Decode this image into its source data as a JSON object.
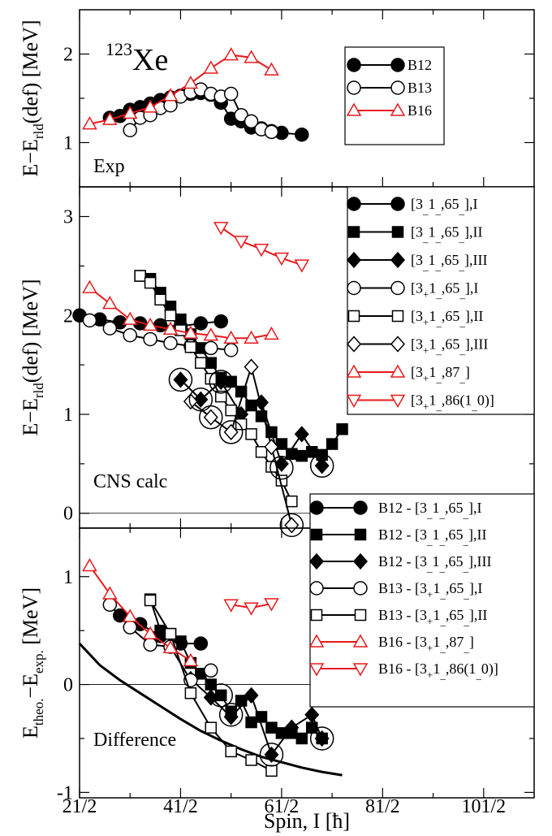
{
  "figure": {
    "xlabel_parts": {
      "pre": "Spin, I [",
      "hbar": "ħ",
      "post": "]"
    },
    "xticks": [
      "21/2",
      "41/2",
      "61/2",
      "81/2",
      "101/2"
    ],
    "xtick_values": [
      10.5,
      20.5,
      30.5,
      40.5,
      50.5
    ],
    "xlim": [
      10.5,
      55.5
    ]
  },
  "colors": {
    "black": "#000000",
    "red": "#e8191b"
  },
  "chart_data": [
    {
      "type": "line",
      "panel": "top",
      "isotope": {
        "mass": "123",
        "symbol": "Xe"
      },
      "annotation": "Exp",
      "ylabel": {
        "a": "E",
        "b": "E",
        "sub": "rld",
        "c": "(def) [MeV]"
      },
      "ylim": [
        0.5,
        2.5
      ],
      "yticks": [
        1,
        2
      ],
      "legend_position": "top-right",
      "series": [
        {
          "name": "B12",
          "marker": "filled-circle",
          "color": "#000000",
          "x": [
            13.5,
            14.5,
            15.5,
            16.5,
            17.5,
            18.5,
            19.5,
            20.5,
            21.5,
            22.5,
            23.5,
            24.5,
            25.5,
            26.5,
            27.5,
            28.5,
            29.5,
            30.5,
            32.5
          ],
          "y": [
            1.28,
            1.3,
            1.37,
            1.4,
            1.44,
            1.48,
            1.51,
            1.53,
            1.55,
            1.56,
            1.54,
            1.45,
            1.27,
            1.24,
            1.17,
            1.16,
            1.13,
            1.11,
            1.09
          ]
        },
        {
          "name": "B13",
          "marker": "open-circle",
          "color": "#000000",
          "x": [
            15.5,
            16.5,
            17.5,
            18.5,
            19.5,
            20.5,
            21.5,
            22.5,
            23.5,
            24.5,
            25.5,
            26.5,
            27.5,
            28.5,
            29.5
          ],
          "y": [
            1.14,
            1.28,
            1.31,
            1.39,
            1.42,
            1.52,
            1.57,
            1.6,
            1.55,
            1.52,
            1.55,
            1.31,
            1.24,
            1.15,
            1.12
          ]
        },
        {
          "name": "B16",
          "marker": "open-triangle-up",
          "color": "#e8191b",
          "x": [
            11.5,
            13.5,
            15.5,
            17.5,
            19.5,
            21.5,
            23.5,
            25.5,
            27.5,
            29.5
          ],
          "y": [
            1.21,
            1.26,
            1.33,
            1.4,
            1.53,
            1.67,
            1.84,
            1.99,
            1.96,
            1.82
          ]
        }
      ]
    },
    {
      "type": "line",
      "panel": "middle",
      "annotation": "CNS calc",
      "ylabel": {
        "a": "E",
        "b": "E",
        "sub": "rld",
        "c": "(def) [MeV]"
      },
      "ylim": [
        -0.15,
        3.3
      ],
      "yticks": [
        0,
        1,
        2,
        3
      ],
      "legend_position": "top-right",
      "series": [
        {
          "name": "[3_1_,65_],I",
          "legend": {
            "a": "[3",
            "s1": "_",
            "b": "1",
            "s2": "_",
            "c": ",65",
            "s3": "_",
            "d": "],I"
          },
          "marker": "filled-circle",
          "color": "#000000",
          "x": [
            10.5,
            12.5,
            14.5,
            16.5,
            18.5,
            20.5,
            22.5,
            24.5
          ],
          "y": [
            2.0,
            1.96,
            1.93,
            1.92,
            1.9,
            1.89,
            1.92,
            1.94
          ]
        },
        {
          "name": "[3_1_,65_],II",
          "legend": {
            "a": "[3",
            "s1": "_",
            "b": "1",
            "s2": "_",
            "c": ",65",
            "s3": "_",
            "d": "],II"
          },
          "marker": "filled-square",
          "color": "#000000",
          "x": [
            16.5,
            17.5,
            18.5,
            19.5,
            20.5,
            21.5,
            22.5,
            23.5,
            24.5,
            25.5,
            26.5,
            27.5,
            28.5,
            29.5,
            30.5,
            31.5,
            32.5,
            33.5,
            34.5,
            35.5,
            36.5
          ],
          "y": [
            2.4,
            2.37,
            2.23,
            2.09,
            1.96,
            1.81,
            1.67,
            1.52,
            1.37,
            1.33,
            1.23,
            1.09,
            0.98,
            0.82,
            0.7,
            0.6,
            0.58,
            0.62,
            0.59,
            0.7,
            0.85
          ]
        },
        {
          "name": "[3_1_,65_],III",
          "legend": {
            "a": "[3",
            "s1": "_",
            "b": "1",
            "s2": "_",
            "c": ",65",
            "s3": "_",
            "d": "],III"
          },
          "marker": "filled-diamond",
          "color": "#000000",
          "x": [
            20.5,
            22.5,
            24.5,
            26.5,
            28.5,
            30.5,
            32.5,
            34.5
          ],
          "y": [
            1.35,
            1.15,
            1.33,
            1.0,
            1.12,
            0.5,
            0.8,
            0.48
          ]
        },
        {
          "name": "[3+1_,65_],I",
          "legend": {
            "a": "[3",
            "s1": "+",
            "b": "1",
            "s2": "_",
            "c": ",65",
            "s3": "_",
            "d": "],I"
          },
          "marker": "open-circle",
          "color": "#000000",
          "x": [
            11.5,
            13.5,
            15.5,
            17.5,
            19.5,
            21.5,
            23.5,
            25.5
          ],
          "y": [
            1.95,
            1.87,
            1.8,
            1.76,
            1.72,
            1.69,
            1.67,
            1.65
          ]
        },
        {
          "name": "[3+1_,65_],II",
          "legend": {
            "a": "[3",
            "s1": "+",
            "b": "1",
            "s2": "_",
            "c": ",65",
            "s3": "_",
            "d": "],II"
          },
          "marker": "open-square",
          "color": "#000000",
          "x": [
            16.5,
            17.5,
            18.5,
            19.5,
            20.5,
            21.5,
            22.5,
            23.5,
            24.5,
            25.5,
            26.5,
            27.5,
            28.5,
            29.5,
            30.5,
            31.5
          ],
          "y": [
            2.4,
            2.33,
            2.16,
            2.0,
            1.85,
            1.68,
            1.52,
            1.36,
            1.18,
            1.04,
            0.9,
            0.8,
            0.62,
            0.47,
            0.33,
            0.12
          ]
        },
        {
          "name": "[3+1_,65_],III",
          "legend": {
            "a": "[3",
            "s1": "+",
            "b": "1",
            "s2": "_",
            "c": ",65",
            "s3": "_",
            "d": "],III"
          },
          "marker": "open-diamond",
          "color": "#000000",
          "x": [
            21.5,
            23.5,
            25.5,
            27.5,
            29.5,
            31.5
          ],
          "y": [
            1.13,
            0.97,
            0.82,
            1.48,
            0.67,
            -0.12
          ]
        },
        {
          "name": "[3+1_,87_]",
          "legend": {
            "a": "[3",
            "s1": "+",
            "b": "1",
            "s2": "_",
            "c": ",87",
            "s3": "_",
            "d": "]"
          },
          "marker": "open-triangle-up",
          "color": "#e8191b",
          "x": [
            11.5,
            13.5,
            15.5,
            17.5,
            19.5,
            21.5,
            23.5,
            25.5,
            27.5,
            29.5
          ],
          "y": [
            2.28,
            2.12,
            1.96,
            1.9,
            1.86,
            1.82,
            1.8,
            1.77,
            1.77,
            1.81
          ]
        },
        {
          "name": "[3+1_,86(1_0)]",
          "legend": {
            "a": "[3",
            "s1": "+",
            "b": "1",
            "s2": "_",
            "c": ",86(1",
            "s3": "_",
            "d": "0)]"
          },
          "marker": "open-triangle-down",
          "color": "#e8191b",
          "x": [
            24.5,
            26.5,
            28.5,
            30.5,
            32.5
          ],
          "y": [
            2.89,
            2.75,
            2.67,
            2.58,
            2.51
          ]
        }
      ],
      "circled_points": [
        {
          "x": 20.5,
          "y": 1.35
        },
        {
          "x": 22.5,
          "y": 1.15
        },
        {
          "x": 23.5,
          "y": 0.97
        },
        {
          "x": 24.5,
          "y": 1.33
        },
        {
          "x": 25.5,
          "y": 0.82
        },
        {
          "x": 30.5,
          "y": 0.46
        },
        {
          "x": 31.5,
          "y": -0.12
        },
        {
          "x": 34.5,
          "y": 0.48
        }
      ]
    },
    {
      "type": "line",
      "panel": "bottom",
      "annotation": "Difference",
      "ylabel": {
        "a": "E",
        "sub1": "theo.",
        "b": "−E",
        "sub2": "exp.",
        "c": " [MeV]"
      },
      "ylim": [
        -1.05,
        1.45
      ],
      "yticks": [
        -1,
        0,
        1
      ],
      "legend_position": "right",
      "series": [
        {
          "name": "B12 - [3_1_,65_],I",
          "legend": {
            "pre": "B12 - ",
            "a": "[3",
            "s1": "_",
            "b": "1",
            "s2": "_",
            "c": ",65",
            "s3": "_",
            "d": "],I"
          },
          "marker": "filled-circle",
          "color": "#000000",
          "x": [
            14.5,
            16.5,
            18.5,
            20.5,
            22.5
          ],
          "y": [
            0.64,
            0.56,
            0.45,
            0.38,
            0.38
          ]
        },
        {
          "name": "B12 - [3_1_,65_],II",
          "legend": {
            "pre": "B12 - ",
            "a": "[3",
            "s1": "_",
            "b": "1",
            "s2": "_",
            "c": ",65",
            "s3": "_",
            "d": "],II"
          },
          "marker": "filled-square",
          "color": "#000000",
          "x": [
            17.5,
            18.5,
            19.5,
            20.5,
            21.5,
            22.5,
            23.5,
            24.5,
            25.5,
            26.5,
            27.5,
            28.5,
            29.5,
            30.5,
            31.5,
            32.5,
            33.5,
            34.5
          ],
          "y": [
            0.79,
            0.5,
            0.47,
            0.4,
            0.2,
            0.1,
            0.0,
            -0.1,
            -0.25,
            -0.15,
            -0.35,
            -0.3,
            -0.4,
            -0.45,
            -0.45,
            -0.5,
            -0.4,
            -0.5
          ]
        },
        {
          "name": "B12 - [3_1_,65_],III",
          "legend": {
            "pre": "B12 - ",
            "a": "[3",
            "s1": "_",
            "b": "1",
            "s2": "_",
            "c": ",65",
            "s3": "_",
            "d": "],III"
          },
          "marker": "filled-diamond",
          "color": "#000000",
          "x": [
            21.5,
            23.5,
            25.5,
            27.5,
            29.5,
            31.5,
            33.5,
            34.5
          ],
          "y": [
            0.05,
            -0.12,
            -0.3,
            -0.1,
            -0.65,
            -0.4,
            -0.28,
            -0.5
          ]
        },
        {
          "name": "B13 - [3+1_,65_],I",
          "legend": {
            "pre": "B13 - ",
            "a": "[3",
            "s1": "+",
            "b": "1",
            "s2": "_",
            "c": ",65",
            "s3": "_",
            "d": "],I"
          },
          "marker": "open-circle",
          "color": "#000000",
          "x": [
            13.5,
            15.5,
            17.5,
            19.5,
            21.5,
            23.5
          ],
          "y": [
            0.74,
            0.53,
            0.37,
            0.35,
            0.04,
            0.13
          ]
        },
        {
          "name": "B13 - [3+1_,65_],II",
          "legend": {
            "pre": "B13 - ",
            "a": "[3",
            "s1": "+",
            "b": "1",
            "s2": "_",
            "c": ",65",
            "s3": "_",
            "d": "],II"
          },
          "marker": "open-square",
          "color": "#000000",
          "x": [
            17.5,
            19.5,
            21.5,
            23.5,
            25.5,
            27.5,
            29.5
          ],
          "y": [
            0.78,
            0.47,
            -0.08,
            -0.4,
            -0.62,
            -0.7,
            -0.8
          ]
        },
        {
          "name": "B16 - [3+1_,87_]",
          "legend": {
            "pre": "B16 - ",
            "a": "[3",
            "s1": "+",
            "b": "1",
            "s2": "_",
            "c": ",87",
            "s3": "_",
            "d": "]"
          },
          "marker": "open-triangle-up",
          "color": "#e8191b",
          "x": [
            11.5,
            13.5,
            15.5,
            17.5,
            19.5,
            21.5
          ],
          "y": [
            1.1,
            0.84,
            0.63,
            0.47,
            0.34,
            0.22
          ]
        },
        {
          "name": "B16 - [3+1_,86(1_0)]",
          "legend": {
            "pre": "B16 - ",
            "a": "[3",
            "s1": "+",
            "b": "1",
            "s2": "_",
            "c": ",86(1",
            "s3": "_",
            "d": "0)]"
          },
          "marker": "open-triangle-down",
          "color": "#e8191b",
          "x": [
            25.5,
            27.5,
            29.5
          ],
          "y": [
            0.74,
            0.71,
            0.75
          ]
        }
      ],
      "circled_points": [
        {
          "x": 24.5,
          "y": -0.1
        },
        {
          "x": 25.5,
          "y": -0.28
        },
        {
          "x": 29.5,
          "y": -0.65
        },
        {
          "x": 34.5,
          "y": -0.5
        }
      ],
      "curve": {
        "x": [
          10.5,
          12.5,
          14.5,
          16.5,
          18.5,
          20.5,
          22.5,
          24.5,
          26.5,
          28.5,
          30.5,
          32.5,
          34.5,
          36.5
        ],
        "y": [
          0.38,
          0.18,
          0.04,
          -0.08,
          -0.2,
          -0.32,
          -0.43,
          -0.52,
          -0.6,
          -0.67,
          -0.72,
          -0.77,
          -0.81,
          -0.84
        ]
      }
    }
  ]
}
